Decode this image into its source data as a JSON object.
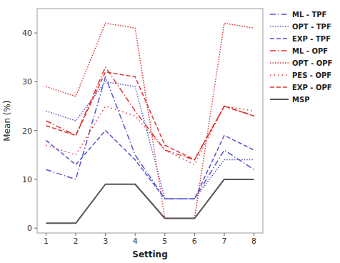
{
  "chart_data": {
    "type": "line",
    "x_label": "Setting",
    "y_label": "Mean (%)",
    "x": [
      1,
      2,
      3,
      4,
      5,
      6,
      7,
      8
    ],
    "series": [
      {
        "name": "ML - TPF",
        "color": "#5555cc",
        "line_style": "dashdot",
        "values": [
          12,
          10,
          31,
          15,
          6,
          6,
          16,
          12
        ]
      },
      {
        "name": "OPT - TPF",
        "color": "#5555cc",
        "line_style": "dotted",
        "values": [
          24,
          22,
          30,
          29,
          6,
          6,
          14,
          14
        ]
      },
      {
        "name": "EXP - TPF",
        "color": "#5555cc",
        "line_style": "dashed",
        "values": [
          18,
          13,
          20,
          14,
          6,
          6,
          19,
          16
        ]
      },
      {
        "name": "ML - OPF",
        "color": "#dd3333",
        "line_style": "dashdot",
        "values": [
          22,
          19,
          33,
          24,
          16,
          14,
          25,
          23
        ]
      },
      {
        "name": "OPT - OPF",
        "color": "#dd3333",
        "line_style": "dotted",
        "values": [
          29,
          27,
          42,
          41,
          2,
          2,
          42,
          41
        ]
      },
      {
        "name": "PES - OPF",
        "color": "#dd3333",
        "line_style": "loosely-dotted",
        "values": [
          17,
          15,
          25,
          23,
          16,
          13,
          25,
          24
        ]
      },
      {
        "name": "EXP - OPF",
        "color": "#dd3333",
        "line_style": "dashed",
        "values": [
          21,
          19,
          32,
          31,
          17,
          14,
          25,
          23
        ]
      },
      {
        "name": "MSP",
        "color": "#555555",
        "line_style": "solid",
        "values": [
          1,
          1,
          9,
          9,
          2,
          2,
          10,
          10
        ]
      }
    ],
    "xlim": [
      0.7,
      8.3
    ],
    "ylim": [
      -1,
      45
    ],
    "xticks": [
      1,
      2,
      3,
      4,
      5,
      6,
      7,
      8
    ],
    "yticks": [
      0,
      10,
      20,
      30,
      40
    ],
    "grid": false,
    "legend": "right"
  }
}
